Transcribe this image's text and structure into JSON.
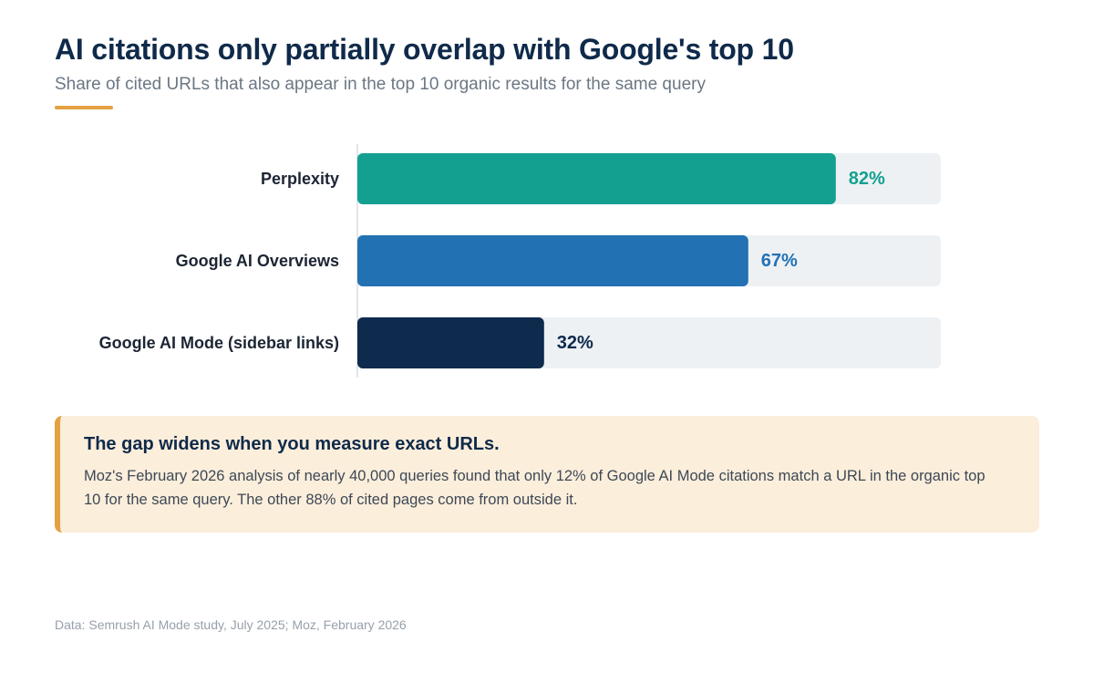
{
  "header": {
    "title": "AI citations only partially overlap with Google's top 10",
    "subtitle": "Share of cited URLs that also appear in the top 10 organic results for the same query"
  },
  "colors": {
    "accent": "#e3a142",
    "track": "#edf1f4",
    "axis": "#d9dee3"
  },
  "chart_data": {
    "type": "bar",
    "orientation": "horizontal",
    "categories": [
      "Perplexity",
      "Google AI Overviews",
      "Google AI Mode (sidebar links)"
    ],
    "values": [
      82,
      67,
      32
    ],
    "value_labels": [
      "82%",
      "67%",
      "32%"
    ],
    "colors": [
      "#14a090",
      "#2271b3",
      "#0e2a4d"
    ],
    "xlim": [
      0,
      100
    ],
    "grid": false,
    "legend": "none"
  },
  "callout": {
    "title": "The gap widens when you measure exact URLs.",
    "body": "Moz's February 2026 analysis of nearly 40,000 queries found that only 12% of Google AI Mode citations match a URL in the organic top 10 for the same query. The other 88% of cited pages come from outside it."
  },
  "footer": {
    "source": "Data: Semrush AI Mode study, July 2025; Moz, February 2026"
  }
}
